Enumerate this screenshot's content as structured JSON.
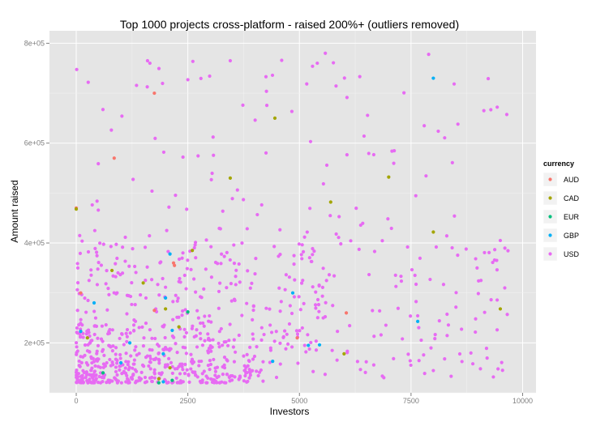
{
  "chart_data": {
    "type": "scatter",
    "title": "Top 1000 projects cross-platform - raised 200%+ (outliers removed)",
    "xlabel": "Investors",
    "ylabel": "Amount raised",
    "xlim": [
      -600,
      10300
    ],
    "ylim": [
      100000,
      825000
    ],
    "xticks": [
      0,
      2500,
      5000,
      7500,
      10000
    ],
    "xtick_labels": [
      "0",
      "2500",
      "5000",
      "7500",
      "10000"
    ],
    "yticks": [
      200000,
      400000,
      600000,
      800000
    ],
    "ytick_labels": [
      "2e+05",
      "4e+05",
      "6e+05",
      "8e+05"
    ],
    "grid": true,
    "legend": {
      "title": "currency",
      "placement": "right",
      "entries": [
        {
          "name": "AUD",
          "color": "#F8766D"
        },
        {
          "name": "CAD",
          "color": "#A3A500"
        },
        {
          "name": "EUR",
          "color": "#00BF7D"
        },
        {
          "name": "GBP",
          "color": "#00B0F6"
        },
        {
          "name": "USD",
          "color": "#E76BF3"
        }
      ]
    },
    "series": [
      {
        "name": "AUD",
        "points": [
          [
            0,
            470000
          ],
          [
            100,
            300000
          ],
          [
            850,
            570000
          ],
          [
            1750,
            700000
          ],
          [
            1750,
            265000
          ],
          [
            2180,
            360000
          ],
          [
            2200,
            355000
          ],
          [
            6050,
            260000
          ],
          [
            4950,
            210000
          ]
        ]
      },
      {
        "name": "CAD",
        "points": [
          [
            0,
            468000
          ],
          [
            250,
            210000
          ],
          [
            800,
            345000
          ],
          [
            1500,
            320000
          ],
          [
            2000,
            268000
          ],
          [
            2100,
            150000
          ],
          [
            2300,
            232000
          ],
          [
            2600,
            385000
          ],
          [
            3450,
            530000
          ],
          [
            4450,
            650000
          ],
          [
            5700,
            482000
          ],
          [
            6000,
            178000
          ],
          [
            7000,
            532000
          ],
          [
            8000,
            422000
          ],
          [
            9500,
            268000
          ],
          [
            1850,
            128000
          ]
        ]
      },
      {
        "name": "EUR",
        "points": [
          [
            600,
            140000
          ],
          [
            2500,
            262000
          ],
          [
            1850,
            120000
          ],
          [
            2150,
            125000
          ]
        ]
      },
      {
        "name": "GBP",
        "points": [
          [
            100,
            223000
          ],
          [
            400,
            280000
          ],
          [
            1000,
            160000
          ],
          [
            1200,
            200000
          ],
          [
            2000,
            290000
          ],
          [
            2100,
            378000
          ],
          [
            2150,
            225000
          ],
          [
            1950,
            178000
          ],
          [
            4850,
            300000
          ],
          [
            5200,
            195000
          ],
          [
            5450,
            196000
          ],
          [
            7650,
            243000
          ],
          [
            8000,
            730000
          ],
          [
            4400,
            163000
          ],
          [
            1950,
            122000
          ]
        ]
      },
      {
        "name": "USD",
        "seed": 17,
        "generated": true
      }
    ]
  }
}
